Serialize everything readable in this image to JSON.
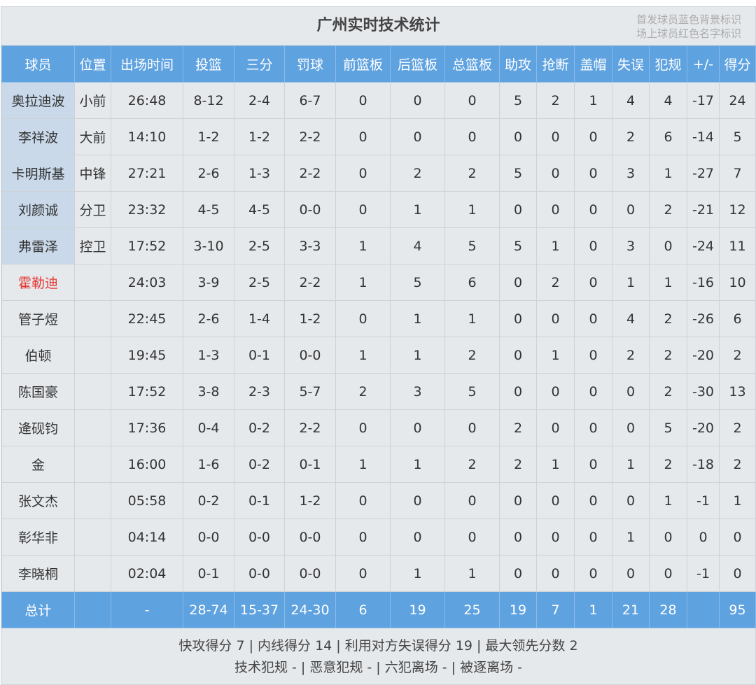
{
  "title": "广州实时技术统计",
  "legend": [
    "首发球员蓝色背景标识",
    "场上球员红色名字标识"
  ],
  "colors": {
    "header": "#5fa2e0",
    "starter_bg": "#c9d9ea",
    "on_court_name": "#e53935"
  },
  "columns": [
    "球员",
    "位置",
    "出场时间",
    "投篮",
    "三分",
    "罚球",
    "前篮板",
    "后篮板",
    "总篮板",
    "助攻",
    "抢断",
    "盖帽",
    "失误",
    "犯规",
    "+/-",
    "得分"
  ],
  "players": [
    {
      "starter": true,
      "on_court": false,
      "cells": [
        "奥拉迪波",
        "小前",
        "26:48",
        "8-12",
        "2-4",
        "6-7",
        "0",
        "0",
        "0",
        "5",
        "2",
        "1",
        "4",
        "4",
        "-17",
        "24"
      ]
    },
    {
      "starter": true,
      "on_court": false,
      "cells": [
        "李祥波",
        "大前",
        "14:10",
        "1-2",
        "1-2",
        "2-2",
        "0",
        "0",
        "0",
        "0",
        "0",
        "0",
        "2",
        "6",
        "-14",
        "5"
      ]
    },
    {
      "starter": true,
      "on_court": false,
      "cells": [
        "卡明斯基",
        "中锋",
        "27:21",
        "2-6",
        "1-3",
        "2-2",
        "0",
        "2",
        "2",
        "5",
        "0",
        "0",
        "3",
        "1",
        "-27",
        "7"
      ]
    },
    {
      "starter": true,
      "on_court": false,
      "cells": [
        "刘颜诚",
        "分卫",
        "23:32",
        "4-5",
        "4-5",
        "0-0",
        "0",
        "1",
        "1",
        "0",
        "0",
        "0",
        "0",
        "2",
        "-21",
        "12"
      ]
    },
    {
      "starter": true,
      "on_court": false,
      "cells": [
        "弗雷泽",
        "控卫",
        "17:52",
        "3-10",
        "2-5",
        "3-3",
        "1",
        "4",
        "5",
        "5",
        "1",
        "0",
        "3",
        "0",
        "-24",
        "11"
      ]
    },
    {
      "starter": false,
      "on_court": true,
      "cells": [
        "霍勒迪",
        "",
        "24:03",
        "3-9",
        "2-5",
        "2-2",
        "1",
        "5",
        "6",
        "0",
        "2",
        "0",
        "1",
        "1",
        "-16",
        "10"
      ]
    },
    {
      "starter": false,
      "on_court": false,
      "cells": [
        "管子煜",
        "",
        "22:45",
        "2-6",
        "1-4",
        "1-2",
        "0",
        "1",
        "1",
        "0",
        "0",
        "0",
        "4",
        "2",
        "-26",
        "6"
      ]
    },
    {
      "starter": false,
      "on_court": false,
      "cells": [
        "伯顿",
        "",
        "19:45",
        "1-3",
        "0-1",
        "0-0",
        "1",
        "1",
        "2",
        "0",
        "1",
        "0",
        "2",
        "2",
        "-20",
        "2"
      ]
    },
    {
      "starter": false,
      "on_court": false,
      "cells": [
        "陈国豪",
        "",
        "17:52",
        "3-8",
        "2-3",
        "5-7",
        "2",
        "3",
        "5",
        "0",
        "0",
        "0",
        "0",
        "2",
        "-30",
        "13"
      ]
    },
    {
      "starter": false,
      "on_court": false,
      "cells": [
        "逄砚钧",
        "",
        "17:36",
        "0-4",
        "0-2",
        "2-2",
        "0",
        "0",
        "0",
        "2",
        "0",
        "0",
        "0",
        "5",
        "-20",
        "2"
      ]
    },
    {
      "starter": false,
      "on_court": false,
      "cells": [
        "金",
        "",
        "16:00",
        "1-6",
        "0-2",
        "0-1",
        "1",
        "1",
        "2",
        "2",
        "1",
        "0",
        "1",
        "2",
        "-18",
        "2"
      ]
    },
    {
      "starter": false,
      "on_court": false,
      "cells": [
        "张文杰",
        "",
        "05:58",
        "0-2",
        "0-1",
        "1-2",
        "0",
        "0",
        "0",
        "0",
        "0",
        "0",
        "0",
        "1",
        "-1",
        "1"
      ]
    },
    {
      "starter": false,
      "on_court": false,
      "cells": [
        "彰华非",
        "",
        "04:14",
        "0-0",
        "0-0",
        "0-0",
        "0",
        "0",
        "0",
        "0",
        "0",
        "0",
        "1",
        "0",
        "0",
        "0"
      ]
    },
    {
      "starter": false,
      "on_court": false,
      "cells": [
        "李晓桐",
        "",
        "02:04",
        "0-1",
        "0-0",
        "0-0",
        "0",
        "1",
        "1",
        "0",
        "0",
        "0",
        "0",
        "0",
        "-1",
        "0"
      ]
    }
  ],
  "totals": [
    "总计",
    "",
    "-",
    "28-74",
    "15-37",
    "24-30",
    "6",
    "19",
    "25",
    "19",
    "7",
    "1",
    "21",
    "28",
    "",
    "95"
  ],
  "footer": [
    "快攻得分 7 | 内线得分 14 | 利用对方失误得分 19 | 最大领先分数 2",
    "技术犯规 - | 恶意犯规 - | 六犯离场 - | 被逐离场 -"
  ]
}
